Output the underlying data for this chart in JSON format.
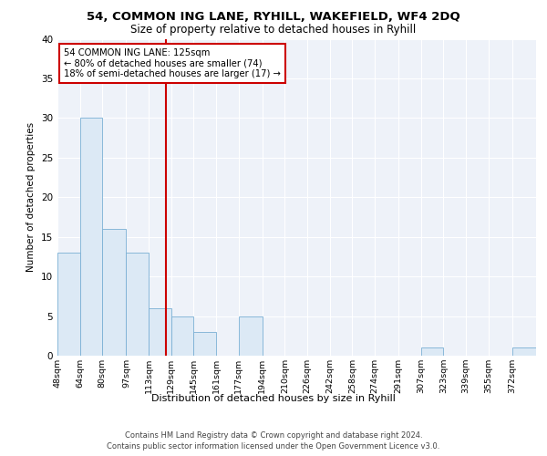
{
  "title1": "54, COMMON ING LANE, RYHILL, WAKEFIELD, WF4 2DQ",
  "title2": "Size of property relative to detached houses in Ryhill",
  "xlabel": "Distribution of detached houses by size in Ryhill",
  "ylabel": "Number of detached properties",
  "bin_labels": [
    "48sqm",
    "64sqm",
    "80sqm",
    "97sqm",
    "113sqm",
    "129sqm",
    "145sqm",
    "161sqm",
    "177sqm",
    "194sqm",
    "210sqm",
    "226sqm",
    "242sqm",
    "258sqm",
    "274sqm",
    "291sqm",
    "307sqm",
    "323sqm",
    "339sqm",
    "355sqm",
    "372sqm"
  ],
  "bin_edges": [
    48,
    64,
    80,
    97,
    113,
    129,
    145,
    161,
    177,
    194,
    210,
    226,
    242,
    258,
    274,
    291,
    307,
    323,
    339,
    355,
    372
  ],
  "counts": [
    13,
    30,
    16,
    13,
    6,
    5,
    3,
    0,
    5,
    0,
    0,
    0,
    0,
    0,
    0,
    0,
    1,
    0,
    0,
    0,
    1
  ],
  "property_size": 125,
  "annotation_line1": "54 COMMON ING LANE: 125sqm",
  "annotation_line2": "← 80% of detached houses are smaller (74)",
  "annotation_line3": "18% of semi-detached houses are larger (17) →",
  "bar_color": "#dce9f5",
  "bar_edge_color": "#7aafd4",
  "vline_color": "#cc0000",
  "annotation_box_edge": "#cc0000",
  "background_color": "#eef2f9",
  "footer_line1": "Contains HM Land Registry data © Crown copyright and database right 2024.",
  "footer_line2": "Contains public sector information licensed under the Open Government Licence v3.0.",
  "ylim": [
    0,
    40
  ],
  "yticks": [
    0,
    5,
    10,
    15,
    20,
    25,
    30,
    35,
    40
  ]
}
